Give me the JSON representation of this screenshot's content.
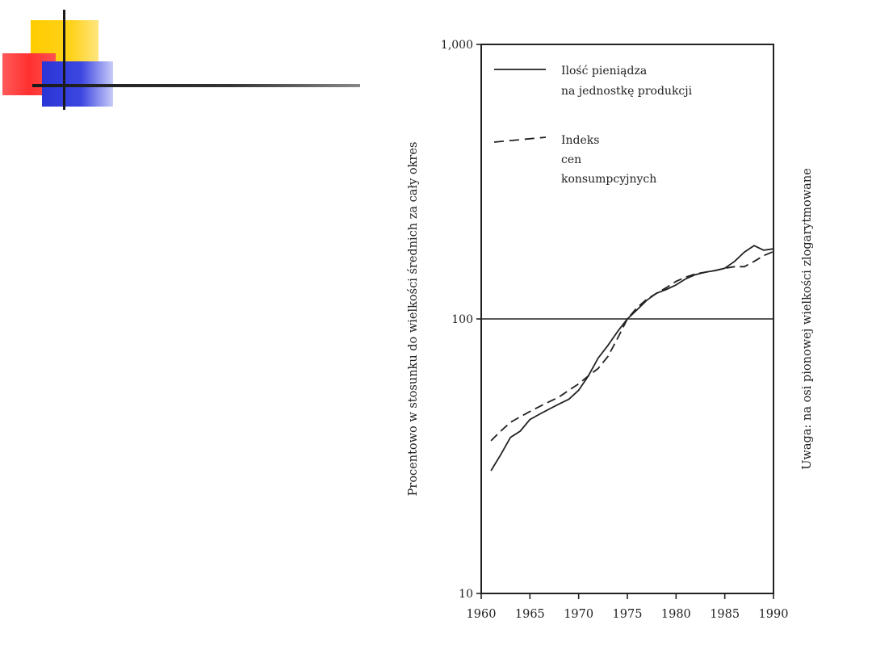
{
  "chart_data": {
    "type": "line",
    "title": "",
    "ylabel": "Procentowo w stosunku do wielkości średnich za cały okres",
    "right_note": "Uwaga: na osi pionowej wielkości zlogarytmowane",
    "xlabel": "",
    "xlim": [
      1960,
      1990
    ],
    "ylim": [
      10,
      1000
    ],
    "yscale": "log",
    "x_ticks": [
      "1960",
      "1965",
      "1970",
      "1975",
      "1980",
      "1985",
      "1990"
    ],
    "y_ticks": [
      "1,000",
      "100",
      "10"
    ],
    "reference_line": 100,
    "legend_position": "top-left",
    "series": [
      {
        "name": "Ilość pieniądza na jednostkę produkcji",
        "legend_lines": [
          "Ilość pieniądza",
          "na jednostkę produkcji"
        ],
        "style": "solid",
        "x": [
          1961,
          1962,
          1963,
          1964,
          1965,
          1966,
          1967,
          1968,
          1969,
          1970,
          1971,
          1972,
          1973,
          1974,
          1975,
          1976,
          1977,
          1978,
          1979,
          1980,
          1981,
          1982,
          1983,
          1984,
          1985,
          1986,
          1987,
          1988,
          1989,
          1990
        ],
        "values": [
          28,
          32,
          37,
          39,
          43,
          45,
          47,
          49,
          51,
          55,
          62,
          72,
          80,
          90,
          100,
          108,
          117,
          124,
          128,
          133,
          140,
          145,
          148,
          150,
          153,
          162,
          175,
          185,
          178,
          180
        ]
      },
      {
        "name": "Indeks cen konsumpcyjnych",
        "legend_lines": [
          "Indeks",
          "cen",
          "konsumpcyjnych"
        ],
        "style": "dashed",
        "x": [
          1961,
          1962,
          1963,
          1964,
          1965,
          1966,
          1967,
          1968,
          1969,
          1970,
          1971,
          1972,
          1973,
          1974,
          1975,
          1976,
          1977,
          1978,
          1979,
          1980,
          1981,
          1982,
          1983,
          1984,
          1985,
          1986,
          1987,
          1988,
          1989,
          1990
        ],
        "values": [
          36,
          39,
          42,
          44,
          46,
          48,
          50,
          52,
          55,
          58,
          62,
          66,
          73,
          85,
          100,
          110,
          118,
          124,
          130,
          137,
          142,
          146,
          148,
          150,
          153,
          155,
          155,
          162,
          170,
          176
        ]
      }
    ]
  }
}
